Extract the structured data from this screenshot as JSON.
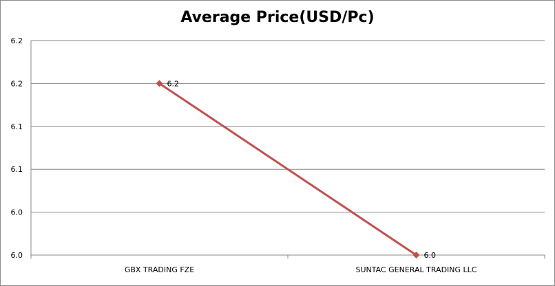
{
  "chart_data": {
    "type": "line",
    "title": "Average Price(USD/Pc)",
    "xlabel": "",
    "ylabel": "",
    "categories": [
      "GBX TRADING FZE",
      "SUNTAC GENERAL TRADING LLC"
    ],
    "series": [
      {
        "values": [
          6.2,
          6.0
        ],
        "data_labels": [
          "6.2",
          "6.0"
        ],
        "color": "#c0504d"
      }
    ],
    "y_ticks": [
      "6.0",
      "6.0",
      "6.1",
      "6.1",
      "6.2",
      "6.2"
    ],
    "ylim": [
      6.0,
      6.25
    ],
    "grid": true,
    "legend": "none",
    "gridline_color": "#878787",
    "axis_color": "#878787"
  }
}
